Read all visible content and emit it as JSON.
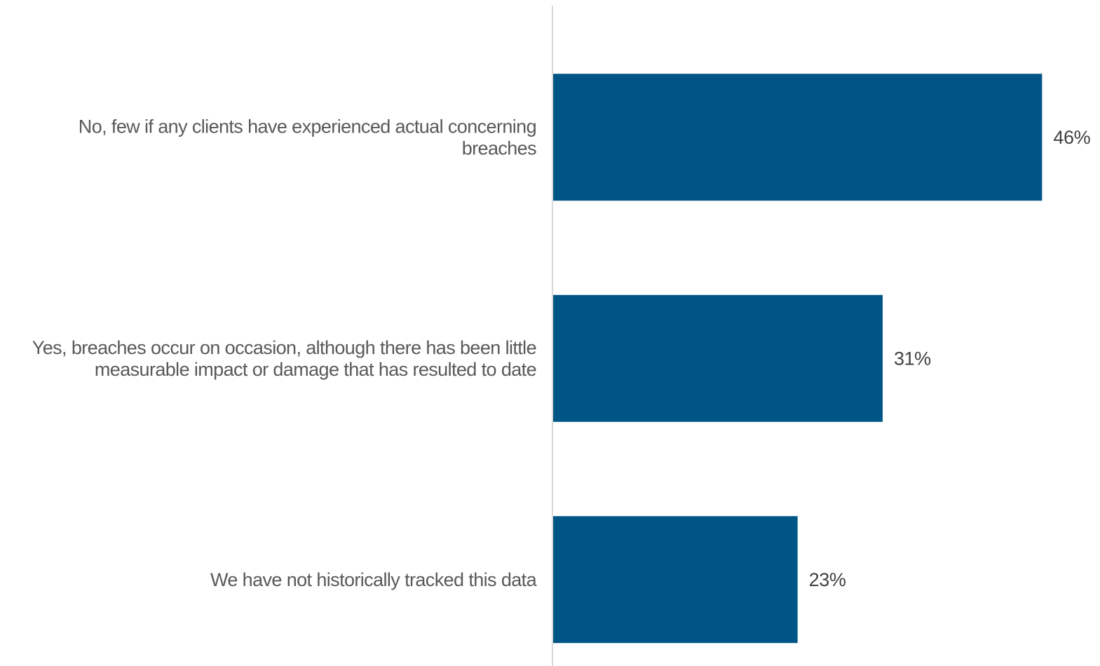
{
  "chart_data": {
    "type": "bar",
    "orientation": "horizontal",
    "categories": [
      [
        "No, few if any clients have experienced actual concerning",
        "breaches"
      ],
      [
        "Yes, breaches occur on occasion, although there has been little",
        "measurable impact or damage that has resulted to date"
      ],
      [
        "We have not historically tracked this data"
      ]
    ],
    "values": [
      46,
      31,
      23
    ],
    "value_labels": [
      "46%",
      "31%",
      "23%"
    ],
    "title": "",
    "xlabel": "",
    "ylabel": "",
    "xlim": [
      0,
      50
    ],
    "grid": false,
    "legend": "none",
    "colors": {
      "bar": "#005587",
      "axis": "#d9d9d9",
      "category_text": "#595959",
      "value_text": "#404040"
    }
  }
}
